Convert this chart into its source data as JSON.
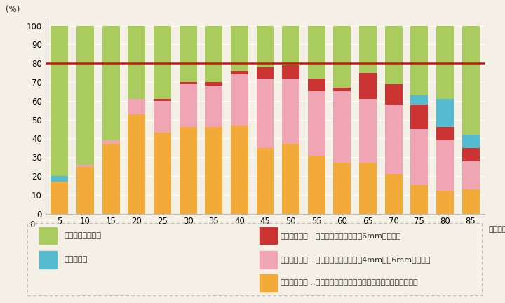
{
  "ages": [
    5,
    10,
    15,
    20,
    25,
    30,
    35,
    40,
    45,
    50,
    55,
    60,
    65,
    70,
    75,
    80,
    85
  ],
  "light": [
    17,
    25,
    37,
    53,
    43,
    46,
    46,
    47,
    35,
    37,
    31,
    27,
    27,
    21,
    15,
    12,
    13
  ],
  "medium": [
    0,
    1,
    2,
    8,
    17,
    23,
    22,
    27,
    37,
    35,
    34,
    38,
    34,
    37,
    30,
    27,
    15
  ],
  "severe": [
    0,
    0,
    0,
    0,
    1,
    1,
    2,
    2,
    6,
    7,
    7,
    2,
    14,
    11,
    13,
    7,
    7
  ],
  "edentulous": [
    3,
    0,
    0,
    0,
    0,
    0,
    0,
    0,
    0,
    0,
    0,
    0,
    0,
    0,
    5,
    15,
    7
  ],
  "healthy": [
    80,
    74,
    61,
    39,
    39,
    30,
    30,
    24,
    22,
    21,
    28,
    33,
    25,
    31,
    37,
    39,
    58
  ],
  "colors": {
    "light": "#f2ab38",
    "medium": "#f0a5b5",
    "severe": "#cc3333",
    "edentulous": "#55bbd0",
    "healthy": "#aacb5e"
  },
  "hline_y": 80,
  "hline_color": "#cc1111",
  "bg_color": "#f5f0e6",
  "ylabel": "(%)",
  "xlabel_suffix": "（年齢）",
  "ylim": [
    0,
    104
  ],
  "yticks": [
    0,
    10,
    20,
    30,
    40,
    50,
    60,
    70,
    80,
    90,
    100
  ],
  "legend": {
    "healthy_label": "歯周病ではない方",
    "severe_label": "重度の歯周病…歯周ポケットの深さが6mm以上の方",
    "edentulous_label": "歯がない方",
    "medium_label": "中度の歯周病…歯周ポケットの深さが4mm以上6mm未満の方",
    "light_label": "軽度の歯周病…歯周炎の方、プロービング後に出血が見られる方"
  }
}
